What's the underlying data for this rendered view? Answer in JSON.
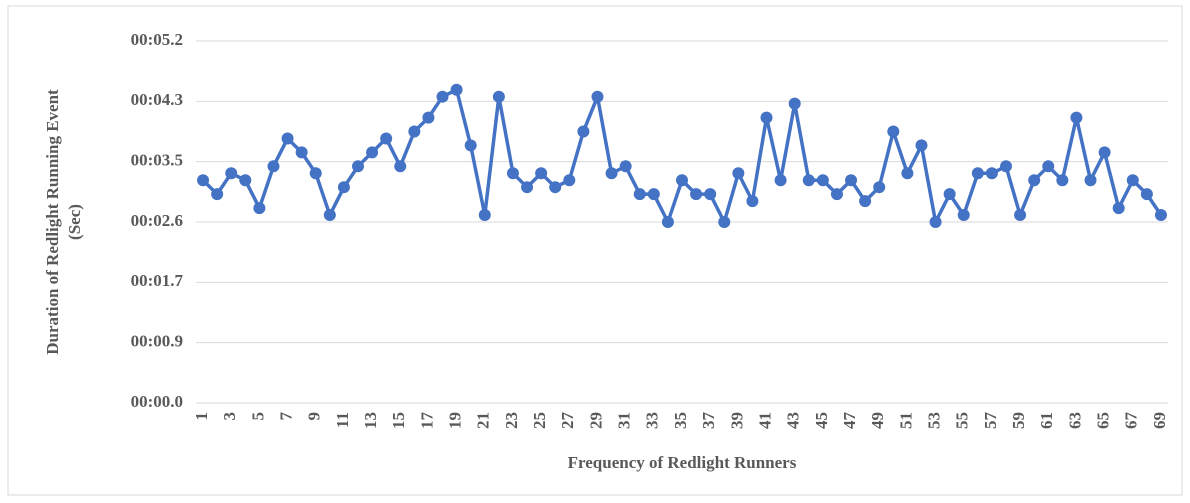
{
  "chart_data": {
    "type": "line",
    "x_label": "Frequency of Redlight Runners",
    "y_label": [
      "Duration of Redlight Running Event",
      "(Sec)"
    ],
    "categories": [
      1,
      null,
      3,
      null,
      5,
      null,
      7,
      null,
      9,
      null,
      11,
      null,
      13,
      null,
      15,
      null,
      17,
      null,
      19,
      null,
      21,
      null,
      23,
      null,
      25,
      null,
      27,
      null,
      29,
      null,
      31,
      null,
      33,
      null,
      35,
      null,
      37,
      null,
      39,
      null,
      41,
      null,
      43,
      null,
      45,
      null,
      47,
      null,
      49,
      null,
      51,
      null,
      53,
      null,
      55,
      null,
      57,
      null,
      59,
      null,
      61,
      null,
      63,
      null,
      65,
      null,
      67,
      null,
      69
    ],
    "series": [
      {
        "name": "Duration",
        "color": "#4472c4",
        "values": [
          3.2,
          3.0,
          3.3,
          3.2,
          2.8,
          3.4,
          3.8,
          3.6,
          3.3,
          2.7,
          3.1,
          3.4,
          3.6,
          3.8,
          3.4,
          3.9,
          4.1,
          4.4,
          4.5,
          3.7,
          2.7,
          4.4,
          3.3,
          3.1,
          3.3,
          3.1,
          3.2,
          3.9,
          4.4,
          3.3,
          3.4,
          3.0,
          3.0,
          2.6,
          3.2,
          3.0,
          3.0,
          2.6,
          3.3,
          2.9,
          4.1,
          3.2,
          4.3,
          3.2,
          3.2,
          3.0,
          3.2,
          2.9,
          3.1,
          3.9,
          3.3,
          3.7,
          2.6,
          3.0,
          2.7,
          3.3,
          3.3,
          3.4,
          2.7,
          3.2,
          3.4,
          3.2,
          4.1,
          3.2,
          3.6,
          2.8,
          3.2,
          3.0,
          2.7
        ]
      }
    ],
    "ylim": [
      0,
      5.2
    ],
    "yticks": [
      {
        "value": 0,
        "label": "00:00.0"
      },
      {
        "value": 0.8667,
        "label": "00:00.9"
      },
      {
        "value": 1.7333,
        "label": "00:01.7"
      },
      {
        "value": 2.6,
        "label": "00:02.6"
      },
      {
        "value": 3.4667,
        "label": "00:03.5"
      },
      {
        "value": 4.3333,
        "label": "00:04.3"
      },
      {
        "value": 5.2,
        "label": "00:05.2"
      }
    ],
    "grid": true
  }
}
